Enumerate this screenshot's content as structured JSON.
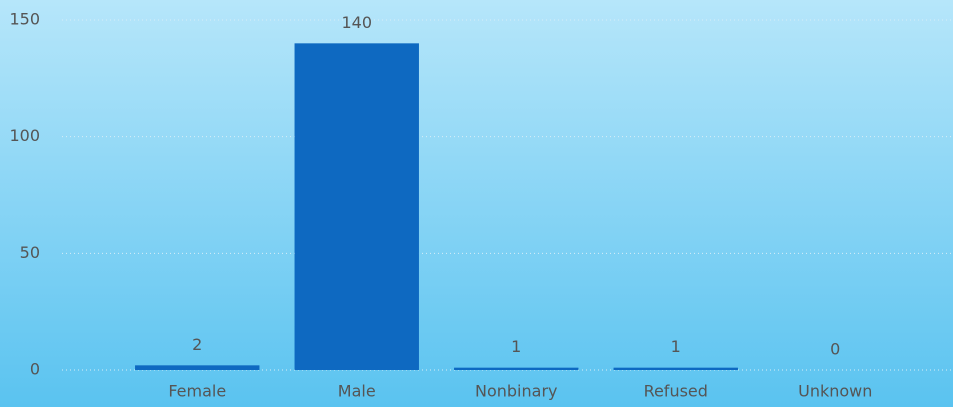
{
  "chart_data": {
    "type": "bar",
    "categories": [
      "Female",
      "Male",
      "Nonbinary",
      "Refused",
      "Unknown"
    ],
    "values": [
      2,
      140,
      1,
      1,
      0
    ],
    "color": "#0e69c1",
    "ylim": [
      0,
      150
    ],
    "yticks": [
      0,
      50,
      100,
      150
    ],
    "grid": true
  }
}
